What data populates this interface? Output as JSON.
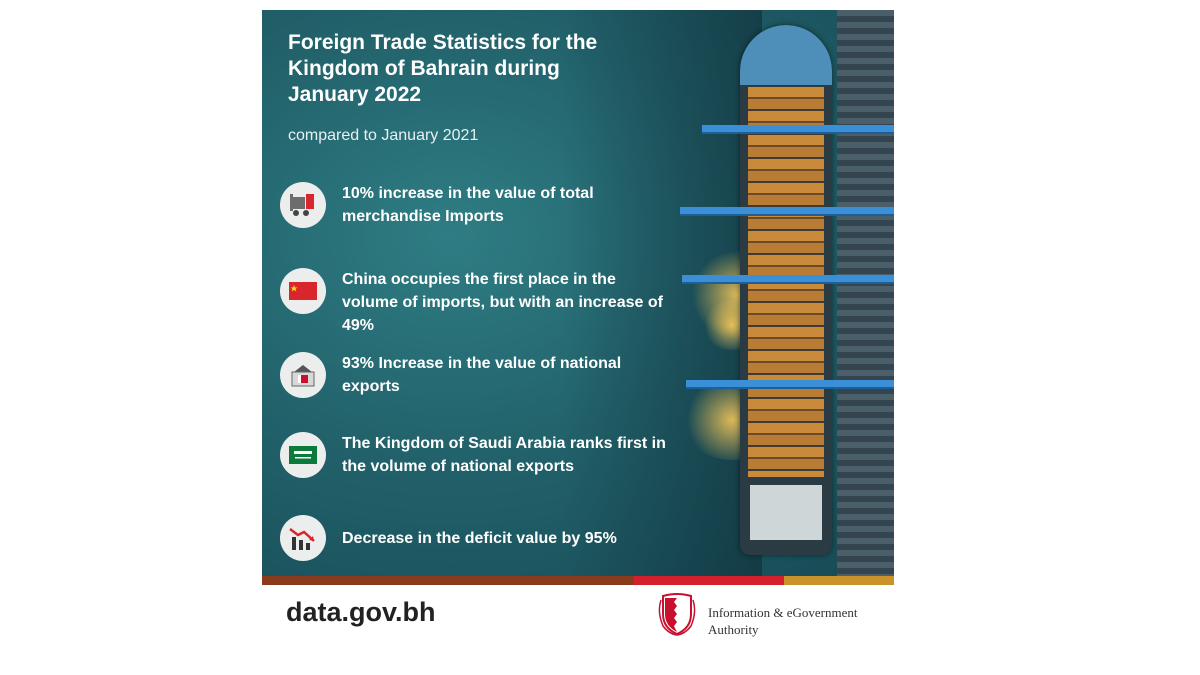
{
  "title": "Foreign Trade Statistics for the Kingdom of Bahrain during January 2022",
  "subtitle": "compared to January 2021",
  "items": [
    {
      "icon": "forklift-icon",
      "text": "10% increase in the value of total merchandise Imports"
    },
    {
      "icon": "china-flag-icon",
      "text": "China occupies the first place in the volume of imports, but with an increase of 49%"
    },
    {
      "icon": "container-bahrain-icon",
      "text": "93% Increase in the value of national exports"
    },
    {
      "icon": "saudi-flag-icon",
      "text": "The Kingdom of Saudi Arabia ranks first in the volume of national exports"
    },
    {
      "icon": "declining-chart-icon",
      "text": "Decrease in the deficit value by 95%"
    }
  ],
  "footer": {
    "website": "data.gov.bh",
    "organization": "Information & eGovernment Authority"
  },
  "colors": {
    "teal_background": "#22626b",
    "bar_brown": "#8a3b1e",
    "bar_red": "#d41f2c",
    "bar_gold": "#c9922a"
  }
}
